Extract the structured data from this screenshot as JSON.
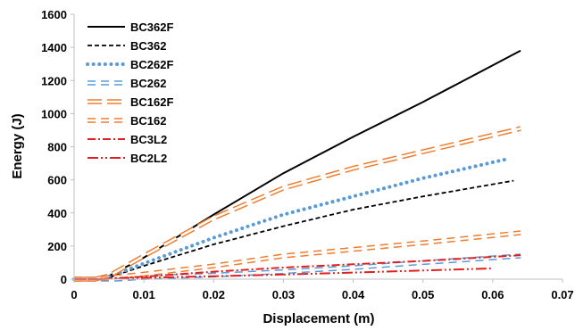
{
  "chart_data": {
    "type": "line",
    "xlabel": "Displacement (m)",
    "ylabel": "Energy (J)",
    "xlim": [
      0,
      0.07
    ],
    "ylim": [
      0,
      1600
    ],
    "xticks": [
      0,
      0.01,
      0.02,
      0.03,
      0.04,
      0.05,
      0.06,
      0.07
    ],
    "yticks": [
      0,
      200,
      400,
      600,
      800,
      1000,
      1200,
      1400,
      1600
    ],
    "xtick_labels": [
      "0",
      "0.01",
      "0.02",
      "0.03",
      "0.04",
      "0.05",
      "0.06",
      "0.07"
    ],
    "ytick_labels": [
      "0",
      "200",
      "400",
      "600",
      "800",
      "1000",
      "1200",
      "1400",
      "1600"
    ],
    "grid": false,
    "legend_position": "top-left",
    "series": [
      {
        "name": "BC362F",
        "color": "#000000",
        "style": "solid",
        "x": [
          0,
          0.003,
          0.005,
          0.01,
          0.02,
          0.03,
          0.04,
          0.05,
          0.064
        ],
        "y": [
          0,
          0,
          20,
          130,
          390,
          640,
          860,
          1070,
          1380
        ]
      },
      {
        "name": "BC362",
        "color": "#000000",
        "style": "dash",
        "x": [
          0,
          0.003,
          0.005,
          0.01,
          0.02,
          0.03,
          0.04,
          0.05,
          0.063
        ],
        "y": [
          0,
          0,
          10,
          80,
          210,
          320,
          420,
          500,
          595
        ]
      },
      {
        "name": "BC262F",
        "color": "#5b9bd5",
        "style": "round-dot",
        "x": [
          0,
          0.003,
          0.005,
          0.01,
          0.02,
          0.03,
          0.04,
          0.05,
          0.062
        ],
        "y": [
          0,
          0,
          15,
          95,
          250,
          390,
          500,
          610,
          725
        ]
      },
      {
        "name": "BC262",
        "color": "#5b9bd5",
        "style": "hollow-dash",
        "x": [
          0,
          0.006,
          0.01,
          0.02,
          0.03,
          0.04,
          0.05,
          0.064
        ],
        "y": [
          0,
          0,
          10,
          25,
          45,
          70,
          100,
          140
        ]
      },
      {
        "name": "BC162F",
        "color": "#ed7d31",
        "style": "hollow-long-dash",
        "x": [
          0,
          0.003,
          0.005,
          0.01,
          0.02,
          0.03,
          0.04,
          0.05,
          0.064
        ],
        "y": [
          0,
          0,
          20,
          140,
          370,
          550,
          670,
          770,
          910
        ]
      },
      {
        "name": "BC162",
        "color": "#ed7d31",
        "style": "hollow-dash",
        "x": [
          0,
          0.003,
          0.01,
          0.02,
          0.03,
          0.04,
          0.05,
          0.064
        ],
        "y": [
          0,
          0,
          30,
          80,
          140,
          180,
          220,
          280
        ]
      },
      {
        "name": "BC3L2",
        "color": "#e02020",
        "style": "dash-dot",
        "x": [
          0,
          0.003,
          0.01,
          0.02,
          0.03,
          0.04,
          0.05,
          0.064
        ],
        "y": [
          0,
          0,
          15,
          45,
          70,
          90,
          110,
          145
        ]
      },
      {
        "name": "BC2L2",
        "color": "#e02020",
        "style": "long-dash-dot-dot",
        "x": [
          0,
          0.003,
          0.01,
          0.02,
          0.03,
          0.04,
          0.05,
          0.06
        ],
        "y": [
          0,
          0,
          8,
          18,
          28,
          40,
          52,
          65
        ]
      }
    ]
  }
}
